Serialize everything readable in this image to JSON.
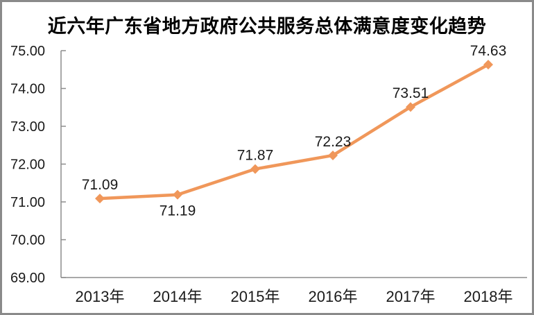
{
  "frame": {
    "background_color": "#ffffff",
    "border_color": "#8a8a8a"
  },
  "chart_data": {
    "type": "line",
    "title": "近六年广东省地方政府公共服务总体满意度变化趋势",
    "categories": [
      "2013年",
      "2014年",
      "2015年",
      "2016年",
      "2017年",
      "2018年"
    ],
    "values": [
      71.09,
      71.19,
      71.87,
      72.23,
      73.51,
      74.63
    ],
    "data_labels": [
      "71.09",
      "71.19",
      "71.87",
      "72.23",
      "73.51",
      "74.63"
    ],
    "data_label_positions": [
      "above",
      "below",
      "above",
      "above",
      "above",
      "above"
    ],
    "xlabel": "",
    "ylabel": "",
    "ylim": [
      69,
      75
    ],
    "ytick_labels": [
      "69.00",
      "70.00",
      "71.00",
      "72.00",
      "73.00",
      "74.00",
      "75.00"
    ],
    "grid": false,
    "legend_position": "none",
    "line_color": "#F0975A",
    "marker_shape": "diamond",
    "axis_color": "#8C8C8C",
    "text_color": "#1A1A1A"
  }
}
